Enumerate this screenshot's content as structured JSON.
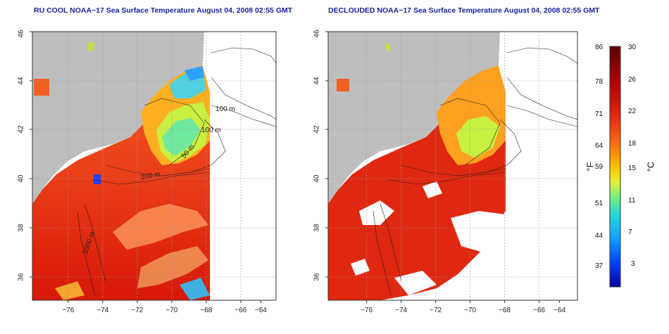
{
  "left_panel": {
    "title": "RU COOL NOAA−17 Sea Surface Temperature August 04, 2008 02:55 GMT"
  },
  "right_panel": {
    "title": "DECLOUDED NOAA−17 Sea Surface Temperature August 04, 2008 02:55 GMT"
  },
  "axes": {
    "x_ticks": [
      "−76",
      "−74",
      "−72",
      "−70",
      "−68",
      "−66",
      "−64"
    ],
    "y_ticks": [
      "36",
      "38",
      "40",
      "42",
      "44",
      "46"
    ]
  },
  "contours": {
    "labels": [
      "100 m",
      "100 m",
      "50 m",
      "200 m",
      "1000 m"
    ]
  },
  "colorbar": {
    "fahrenheit_unit": "°F",
    "celsius_unit": "°C",
    "fahrenheit_ticks": [
      "86",
      "78",
      "71",
      "64",
      "59",
      "51",
      "44",
      "37"
    ],
    "celsius_ticks": [
      "30",
      "26",
      "22",
      "18",
      "15",
      "11",
      "7",
      "3"
    ],
    "colors": [
      "#2a0000",
      "#7a0000",
      "#c00000",
      "#e82010",
      "#ff6a10",
      "#ffb000",
      "#ffe020",
      "#a0f040",
      "#40e0a0",
      "#20c0ff",
      "#0060ff",
      "#0000c0"
    ]
  }
}
